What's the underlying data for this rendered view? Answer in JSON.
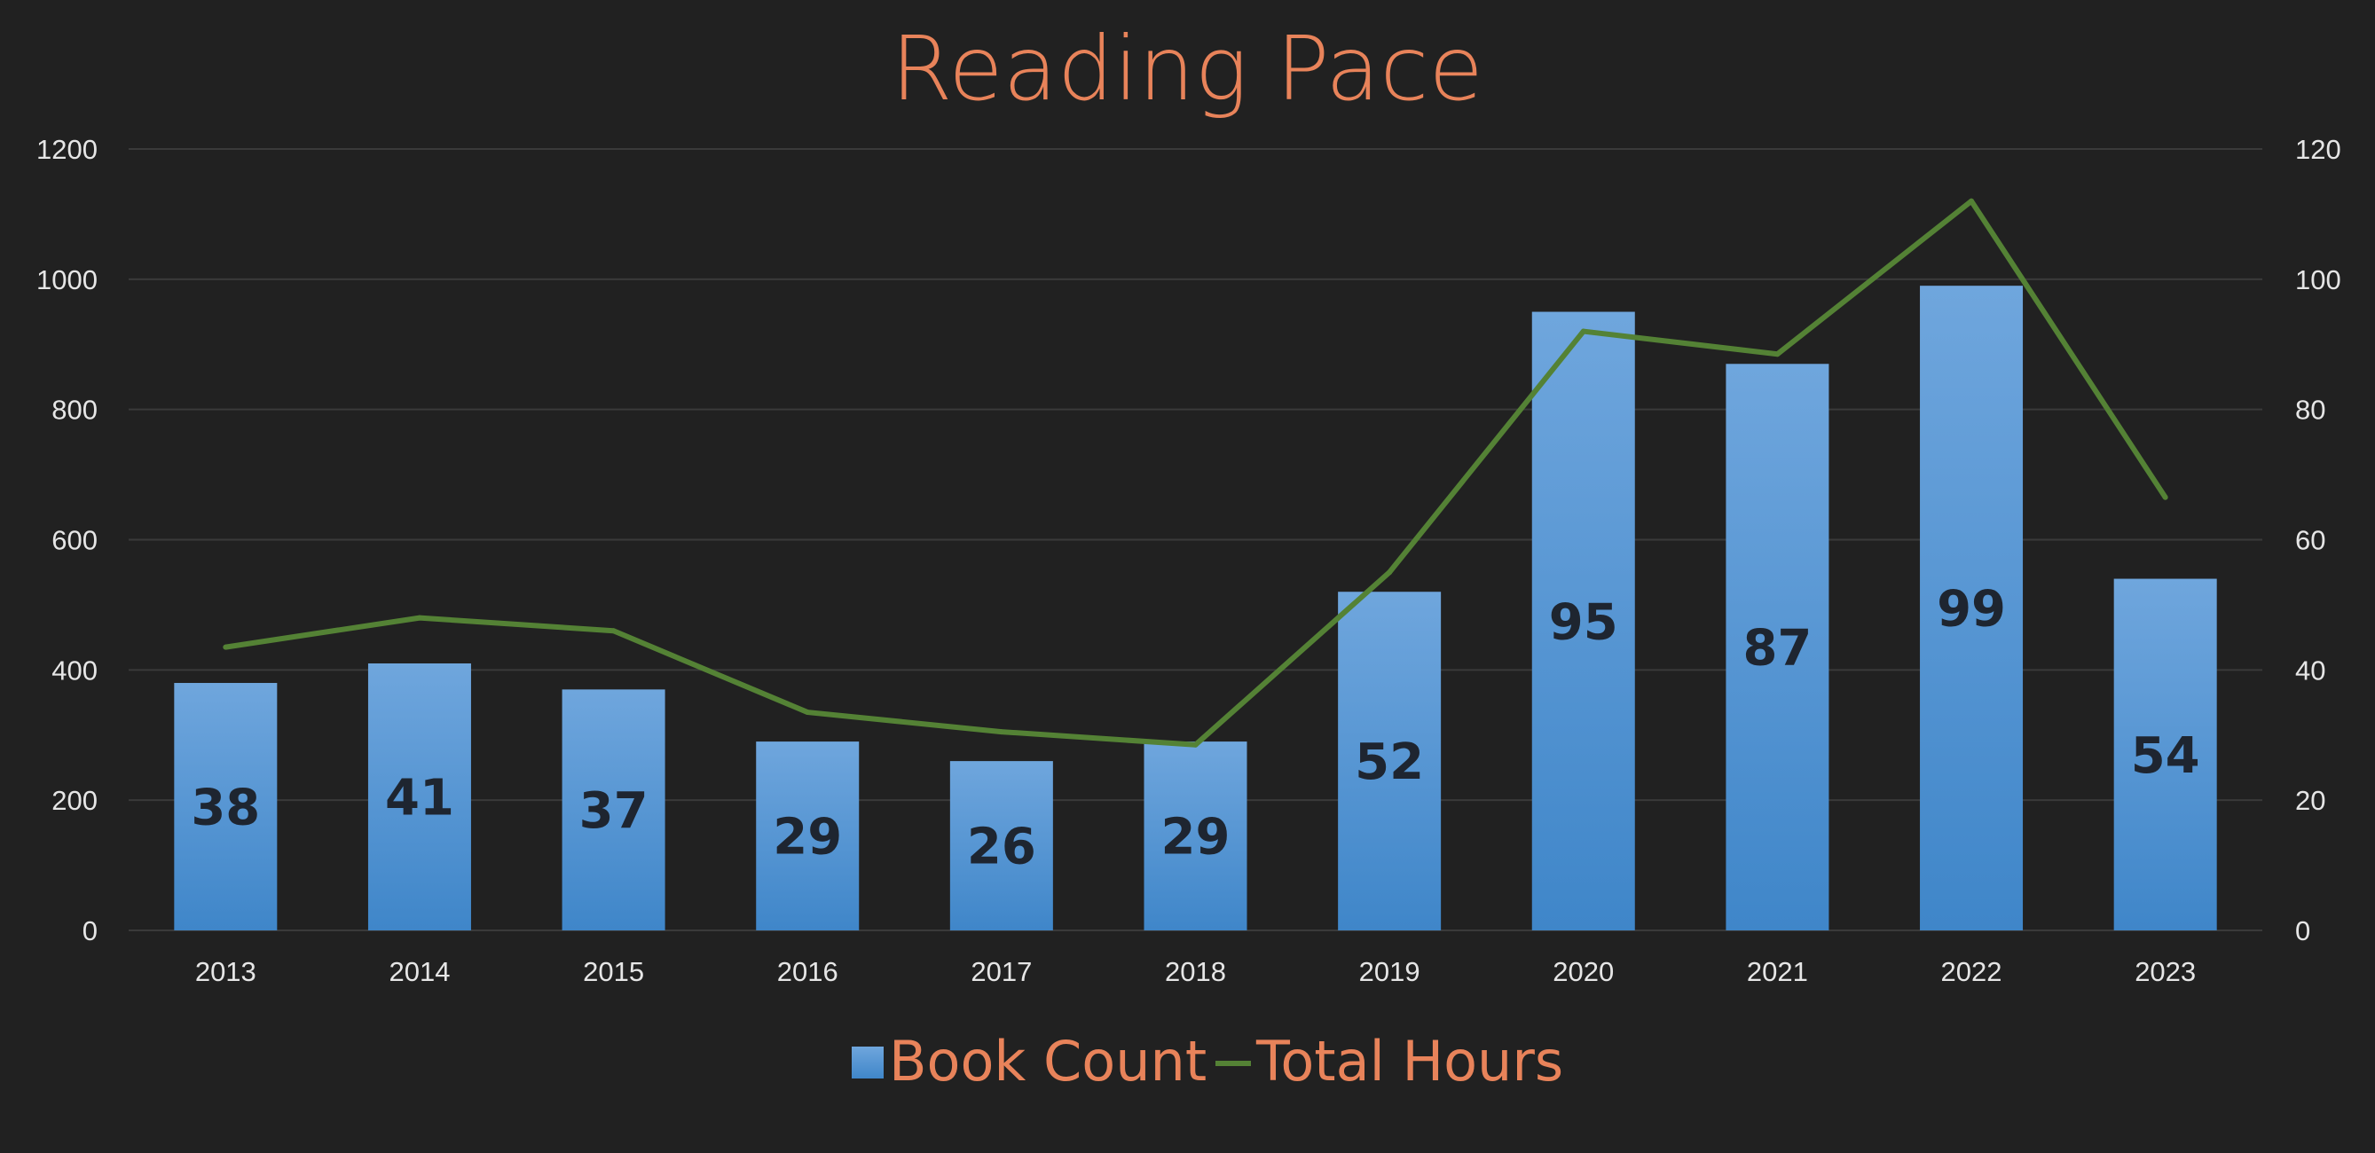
{
  "chart_data": {
    "type": "bar",
    "title": "Reading Pace",
    "categories": [
      "2013",
      "2014",
      "2015",
      "2016",
      "2017",
      "2018",
      "2019",
      "2020",
      "2021",
      "2022",
      "2023"
    ],
    "series": [
      {
        "name": "Book Count",
        "type": "bar",
        "axis": "left",
        "values": [
          380,
          410,
          370,
          290,
          260,
          290,
          520,
          950,
          870,
          990,
          540
        ],
        "labels": [
          "38",
          "41",
          "37",
          "29",
          "26",
          "29",
          "52",
          "95",
          "87",
          "99",
          "54"
        ],
        "color": "#4a8fd4"
      },
      {
        "name": "Total Hours",
        "type": "line",
        "axis": "right",
        "values": [
          43.5,
          48,
          46,
          33.5,
          30.5,
          28.5,
          55,
          92,
          88.5,
          112,
          66.5
        ],
        "color": "#548235"
      }
    ],
    "y_left": {
      "min": 0,
      "max": 1200,
      "ticks": [
        "0",
        "200",
        "400",
        "600",
        "800",
        "1000",
        "1200"
      ]
    },
    "y_right": {
      "min": 0,
      "max": 120,
      "ticks": [
        "0",
        "20",
        "40",
        "60",
        "80",
        "100",
        "120"
      ]
    },
    "grid": true,
    "legend_position": "bottom"
  },
  "colors": {
    "background": "#212121",
    "title": "#E8835A",
    "tick_text": "#E6E6E6",
    "grid": "#3A3A3A",
    "data_label": "#1E2530",
    "bar_top": "#6FA6DD",
    "bar_bottom": "#3F86C9"
  }
}
